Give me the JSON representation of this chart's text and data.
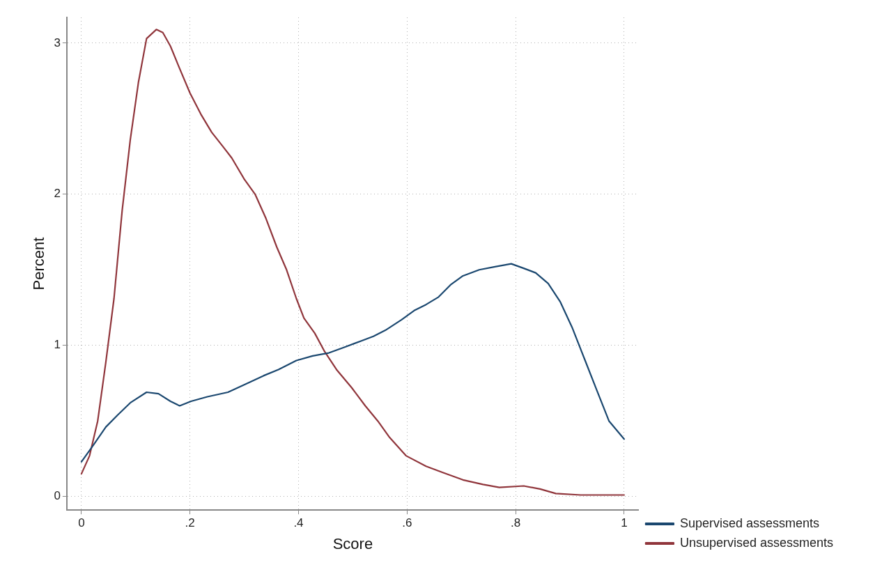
{
  "chart_data": {
    "type": "line",
    "xlabel": "Score",
    "ylabel": "Percent",
    "xlim": [
      -0.027,
      1.027
    ],
    "ylim": [
      -0.09,
      3.17
    ],
    "xticks": [
      0,
      {
        "value": 0.2,
        "label": ".2"
      },
      {
        "value": 0.4,
        "label": ".4"
      },
      {
        "value": 0.6,
        "label": ".6"
      },
      {
        "value": 0.8,
        "label": ".8"
      },
      1
    ],
    "yticks": [
      0,
      1,
      2,
      3
    ],
    "grid": true,
    "legend": "bottom right",
    "marker": "none",
    "line_style": "solid",
    "series": [
      {
        "name": "Supervised assessments",
        "color": "#1a476f",
        "x": [
          0,
          0.022,
          0.045,
          0.067,
          0.09,
          0.12,
          0.142,
          0.164,
          0.181,
          0.202,
          0.232,
          0.27,
          0.3,
          0.336,
          0.363,
          0.396,
          0.426,
          0.456,
          0.486,
          0.516,
          0.538,
          0.56,
          0.59,
          0.613,
          0.635,
          0.658,
          0.68,
          0.703,
          0.733,
          0.762,
          0.792,
          0.815,
          0.837,
          0.86,
          0.882,
          0.904,
          0.927,
          0.95,
          0.972,
          1
        ],
        "values": [
          0.23,
          0.34,
          0.46,
          0.54,
          0.62,
          0.69,
          0.68,
          0.63,
          0.6,
          0.63,
          0.66,
          0.69,
          0.74,
          0.8,
          0.84,
          0.9,
          0.93,
          0.95,
          0.99,
          1.03,
          1.06,
          1.1,
          1.17,
          1.23,
          1.27,
          1.32,
          1.4,
          1.46,
          1.5,
          1.52,
          1.54,
          1.51,
          1.48,
          1.41,
          1.29,
          1.12,
          0.91,
          0.7,
          0.5,
          0.38
        ]
      },
      {
        "name": "Unsupervised assessments",
        "color": "#90353b",
        "x": [
          0,
          0.015,
          0.03,
          0.045,
          0.06,
          0.075,
          0.09,
          0.105,
          0.12,
          0.138,
          0.15,
          0.164,
          0.18,
          0.2,
          0.22,
          0.24,
          0.262,
          0.277,
          0.3,
          0.32,
          0.34,
          0.36,
          0.378,
          0.396,
          0.41,
          0.43,
          0.448,
          0.47,
          0.498,
          0.523,
          0.546,
          0.568,
          0.598,
          0.635,
          0.665,
          0.703,
          0.74,
          0.77,
          0.815,
          0.845,
          0.874,
          0.92,
          0.964,
          1
        ],
        "values": [
          0.15,
          0.27,
          0.5,
          0.89,
          1.31,
          1.89,
          2.36,
          2.74,
          3.03,
          3.09,
          3.07,
          2.98,
          2.84,
          2.67,
          2.53,
          2.41,
          2.31,
          2.24,
          2.1,
          2.0,
          1.84,
          1.65,
          1.5,
          1.31,
          1.18,
          1.08,
          0.96,
          0.84,
          0.72,
          0.6,
          0.5,
          0.39,
          0.27,
          0.2,
          0.16,
          0.11,
          0.08,
          0.06,
          0.07,
          0.05,
          0.02,
          0.01,
          0.01,
          0.01
        ]
      }
    ]
  }
}
